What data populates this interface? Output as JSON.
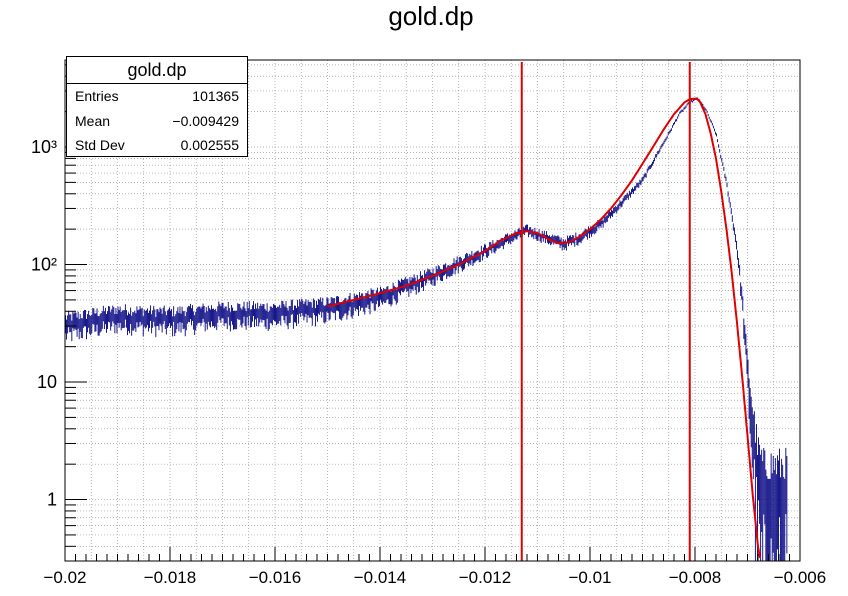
{
  "chart_data": {
    "type": "histogram",
    "title": "gold.dp",
    "xlabel": "",
    "ylabel": "",
    "xlim": [
      -0.02,
      -0.006
    ],
    "ylim": [
      0.3,
      5500
    ],
    "yscale": "log",
    "grid": true,
    "x_ticks": [
      -0.02,
      -0.018,
      -0.016,
      -0.014,
      -0.012,
      -0.01,
      -0.008,
      -0.006
    ],
    "x_tick_labels": [
      "−0.02",
      "−0.018",
      "−0.016",
      "−0.014",
      "−0.012",
      "−0.01",
      "−0.008",
      "−0.006"
    ],
    "y_ticks": [
      1,
      10,
      100,
      1000
    ],
    "y_tick_labels": [
      "1",
      "10",
      "10²",
      "10³"
    ],
    "histogram": {
      "name": "gold.dp",
      "color": "#000080",
      "x": [
        -0.02,
        -0.019,
        -0.018,
        -0.017,
        -0.016,
        -0.015,
        -0.014,
        -0.013,
        -0.012,
        -0.0115,
        -0.0112,
        -0.0108,
        -0.0105,
        -0.0102,
        -0.0098,
        -0.0095,
        -0.009,
        -0.0087,
        -0.0085,
        -0.0083,
        -0.0081,
        -0.00795,
        -0.0078,
        -0.0076,
        -0.0074,
        -0.0072,
        -0.0071,
        -0.007,
        -0.0069,
        -0.0068,
        -0.0067,
        -0.0066,
        -0.0065,
        -0.0064,
        -0.0063
      ],
      "y": [
        30,
        36,
        34,
        38,
        38,
        42,
        52,
        80,
        130,
        170,
        195,
        168,
        150,
        170,
        220,
        300,
        520,
        900,
        1300,
        1900,
        2400,
        2600,
        2100,
        1300,
        500,
        140,
        50,
        12,
        4,
        1.5,
        1,
        1,
        1,
        1,
        1
      ]
    },
    "fit": {
      "color": "#e00000",
      "x": [
        -0.015,
        -0.0145,
        -0.014,
        -0.0135,
        -0.013,
        -0.0125,
        -0.012,
        -0.0117,
        -0.0114,
        -0.0112,
        -0.011,
        -0.0108,
        -0.0106,
        -0.0104,
        -0.0102,
        -0.01,
        -0.0098,
        -0.0096,
        -0.0094,
        -0.0092,
        -0.009,
        -0.0088,
        -0.0086,
        -0.0084,
        -0.0082,
        -0.0081,
        -0.008,
        -0.00795,
        -0.0079,
        -0.0078,
        -0.0077,
        -0.0076,
        -0.0075,
        -0.0074,
        -0.0073,
        -0.0072,
        -0.0071,
        -0.007,
        -0.0069,
        -0.0068,
        -0.00675
      ],
      "y": [
        44,
        50,
        57,
        66,
        80,
        100,
        130,
        160,
        185,
        192,
        185,
        165,
        152,
        155,
        172,
        200,
        240,
        300,
        390,
        520,
        720,
        1000,
        1400,
        1900,
        2400,
        2550,
        2580,
        2550,
        2400,
        1900,
        1300,
        800,
        420,
        200,
        85,
        32,
        11,
        3.5,
        1.1,
        0.4,
        0.3
      ]
    },
    "markers": [
      {
        "x": -0.0113,
        "color": "#e00000"
      },
      {
        "x": -0.0081,
        "color": "#e00000"
      }
    ],
    "stats": {
      "title": "gold.dp",
      "rows": [
        {
          "label": "Entries",
          "value": "101365"
        },
        {
          "label": "Mean",
          "value": "−0.009429"
        },
        {
          "label": "Std Dev",
          "value": "0.002555"
        }
      ]
    }
  }
}
